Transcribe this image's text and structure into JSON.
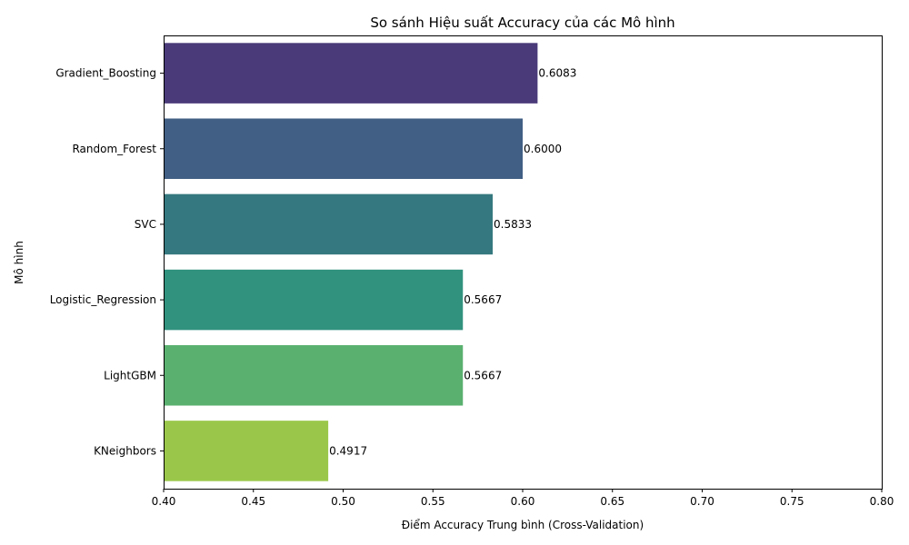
{
  "chart_data": {
    "type": "bar",
    "orientation": "horizontal",
    "title": "So sánh Hiệu suất Accuracy của các Mô hình",
    "xlabel": "Điểm Accuracy Trung bình (Cross-Validation)",
    "ylabel": "Mô hình",
    "xlim": [
      0.4,
      0.8
    ],
    "xticks": [
      "0.40",
      "0.45",
      "0.50",
      "0.55",
      "0.60",
      "0.65",
      "0.70",
      "0.75",
      "0.80"
    ],
    "categories": [
      "Gradient_Boosting",
      "Random_Forest",
      "SVC",
      "Logistic_Regression",
      "LightGBM",
      "KNeighbors"
    ],
    "values": [
      0.6083,
      0.6,
      0.5833,
      0.5667,
      0.5667,
      0.4917
    ],
    "value_labels": [
      "0.6083",
      "0.6000",
      "0.5833",
      "0.5667",
      "0.5667",
      "0.4917"
    ],
    "colors": [
      "#4a3a79",
      "#415f84",
      "#35787f",
      "#31927e",
      "#5ab16f",
      "#9ac74a"
    ],
    "grid": false,
    "legend": "none"
  }
}
